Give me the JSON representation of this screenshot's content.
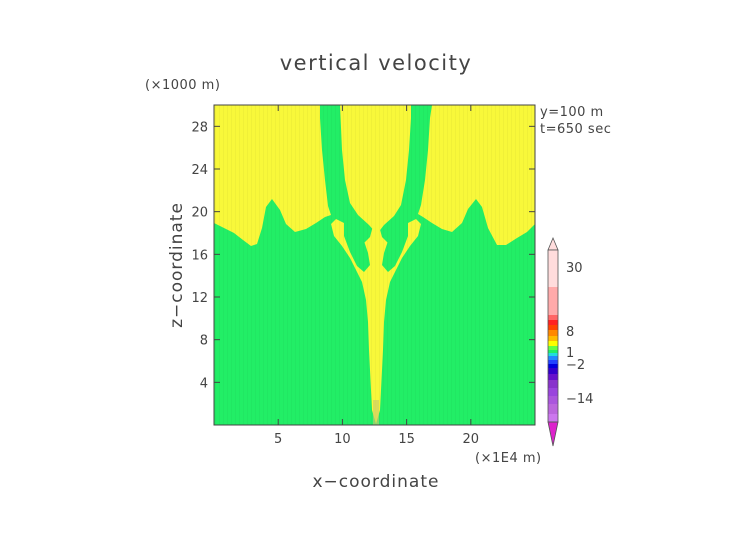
{
  "chart_data": {
    "type": "heatmap",
    "title": "vertical velocity",
    "xlabel": "x−coordinate",
    "ylabel": "z−coordinate",
    "x_unit_label": "(×1E4 m)",
    "y_unit_label": "(×1000 m)",
    "info_lines": [
      "y=100  m",
      "t=650 sec"
    ],
    "xlim": [
      0,
      25
    ],
    "ylim": [
      0,
      30
    ],
    "x_ticks": [
      "5",
      "10",
      "15",
      "20"
    ],
    "y_ticks": [
      "4",
      "8",
      "12",
      "16",
      "20",
      "24",
      "28"
    ],
    "colors": {
      "background_field": "#22ee66",
      "positive_field": "#f8f83a"
    },
    "colorbar": {
      "labels": [
        "30",
        "8",
        "1",
        "−2",
        "−14"
      ],
      "top_color": "#ffdddd",
      "bottom_color": "#dd22cc"
    }
  }
}
